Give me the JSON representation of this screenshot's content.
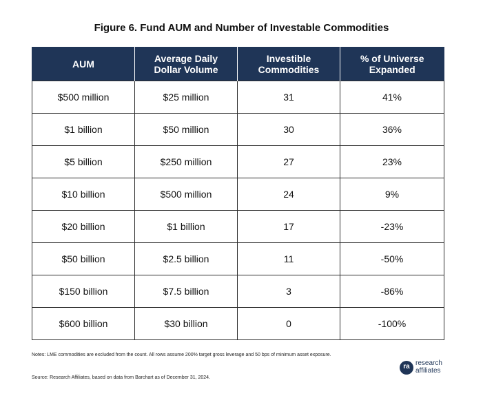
{
  "title": "Figure 6. Fund AUM and Number of Investable Commodities",
  "chart_data": {
    "type": "table",
    "columns": [
      "AUM",
      "Average Daily\nDollar Volume",
      "Investible\nCommodities",
      "% of Universe\nExpanded"
    ],
    "rows": [
      [
        "$500 million",
        "$25 million",
        "31",
        "41%"
      ],
      [
        "$1 billion",
        "$50 million",
        "30",
        "36%"
      ],
      [
        "$5 billion",
        "$250 million",
        "27",
        "23%"
      ],
      [
        "$10 billion",
        "$500 million",
        "24",
        "9%"
      ],
      [
        "$20 billion",
        "$1 billion",
        "17",
        "-23%"
      ],
      [
        "$50 billion",
        "$2.5 billion",
        "11",
        "-50%"
      ],
      [
        "$150 billion",
        "$7.5 billion",
        "3",
        "-86%"
      ],
      [
        "$600 billion",
        "$30 billion",
        "0",
        "-100%"
      ]
    ]
  },
  "notes": "Notes: LME commodities are excluded from the count. All rows assume 200% target gross leverage and 50 bps of minimum asset exposure.",
  "source": "Source: Research Affiliates, based on data from Barchart as of December 31, 2024.",
  "logo": {
    "mark": "ra",
    "line1": "research",
    "line2": "affiliates",
    "color": "#1f3557"
  },
  "colors": {
    "header_bg": "#1f3557",
    "header_text": "#ffffff",
    "border": "#2b2b2b"
  }
}
